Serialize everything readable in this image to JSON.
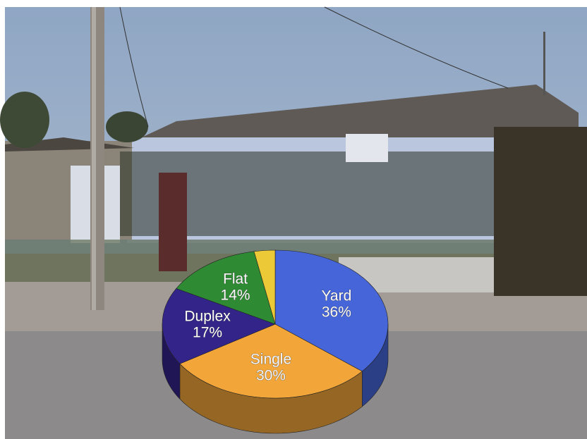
{
  "chart_data": {
    "type": "pie",
    "categories": [
      "Yard",
      "Single",
      "Duplex",
      "Flat",
      null
    ],
    "values": [
      36,
      30,
      17,
      14,
      3
    ],
    "value_labels": [
      "36%",
      "30%",
      "17%",
      "14%",
      null
    ],
    "colors": [
      "#4565d8",
      "#f2a63a",
      "#33248a",
      "#2f8a34",
      "#ecc936"
    ]
  }
}
